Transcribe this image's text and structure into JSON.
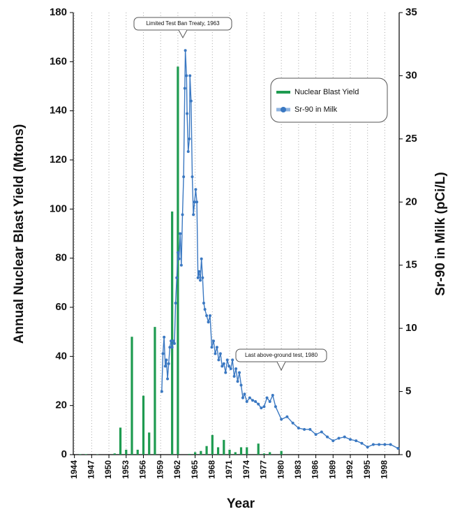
{
  "chart_data": {
    "type": "combo",
    "xlabel": "Year",
    "ylabel": "Annual Nuclear Blast Yield (Mtons)",
    "y2label": "Sr-90 in Milk (pCi/L)",
    "xlim": [
      1943.8,
      2000.5
    ],
    "xticks": [
      1944,
      1947,
      1950,
      1953,
      1956,
      1959,
      1962,
      1965,
      1968,
      1971,
      1974,
      1977,
      1980,
      1983,
      1986,
      1989,
      1992,
      1995,
      1998
    ],
    "ylim": [
      0,
      180
    ],
    "yticks": [
      0,
      20,
      40,
      60,
      80,
      100,
      120,
      140,
      160,
      180
    ],
    "y2lim": [
      0,
      35
    ],
    "y2ticks": [
      0,
      5,
      10,
      15,
      20,
      25,
      30,
      35
    ],
    "grid": true,
    "legend": "upper right",
    "annotations": [
      "Limited Test Ban Treaty, 1963",
      "Last above-ground test, 1980"
    ],
    "series": [
      {
        "name": "Nuclear Blast Yield",
        "type": "bar",
        "color": "#1e9b50",
        "x": [
          1945,
          1946,
          1948,
          1951,
          1952,
          1953,
          1954,
          1955,
          1956,
          1957,
          1958,
          1961,
          1962,
          1964,
          1965,
          1966,
          1967,
          1968,
          1969,
          1970,
          1971,
          1972,
          1973,
          1974,
          1976,
          1977,
          1978,
          1980
        ],
        "values": [
          0.2,
          0.2,
          0.1,
          0.5,
          11,
          2,
          48,
          2,
          24,
          9,
          52,
          99,
          158,
          0.3,
          1,
          1.5,
          3.5,
          8,
          3,
          6,
          2,
          1,
          3,
          3,
          4.5,
          0.5,
          1,
          1.5
        ]
      },
      {
        "name": "Sr-90 in Milk",
        "type": "line",
        "axis": "y2",
        "color": "#3a78c2",
        "x": [
          1959.2,
          1959.4,
          1959.6,
          1959.8,
          1960.0,
          1960.2,
          1960.4,
          1960.6,
          1960.8,
          1961.0,
          1961.2,
          1961.4,
          1961.6,
          1961.8,
          1962.0,
          1962.2,
          1962.4,
          1962.6,
          1962.8,
          1963.0,
          1963.2,
          1963.3,
          1963.5,
          1963.6,
          1963.8,
          1964.0,
          1964.1,
          1964.3,
          1964.5,
          1964.7,
          1964.9,
          1965.1,
          1965.3,
          1965.5,
          1965.7,
          1965.9,
          1966.1,
          1966.3,
          1966.5,
          1966.7,
          1967.0,
          1967.3,
          1967.6,
          1967.9,
          1968.2,
          1968.5,
          1968.8,
          1969.1,
          1969.4,
          1969.7,
          1970.0,
          1970.3,
          1970.6,
          1970.9,
          1971.2,
          1971.5,
          1971.8,
          1972.1,
          1972.4,
          1972.7,
          1973.0,
          1973.3,
          1973.6,
          1974.0,
          1974.5,
          1975.0,
          1975.5,
          1976.0,
          1976.5,
          1977.0,
          1977.5,
          1978.0,
          1978.5,
          1979,
          1980,
          1981,
          1982,
          1983,
          1984,
          1985,
          1986,
          1987,
          1988,
          1989,
          1990,
          1991,
          1992,
          1993,
          1994,
          1995,
          1996,
          1997,
          1998,
          1999,
          2000.3
        ],
        "values": [
          5,
          8,
          9.3,
          7,
          7.5,
          6,
          7.2,
          8.5,
          9,
          8.5,
          9,
          8.8,
          12,
          14,
          16,
          15.5,
          17.5,
          15,
          19,
          22,
          29,
          32,
          30,
          27,
          24,
          25,
          30,
          28,
          22,
          19,
          20,
          21,
          20,
          14,
          14.5,
          13.8,
          15.5,
          14,
          12,
          11.5,
          11,
          10.5,
          11,
          8.5,
          9,
          8,
          8.5,
          7.5,
          8,
          7,
          7.2,
          6.5,
          7.5,
          7,
          6.8,
          7.5,
          6.2,
          6.8,
          5.8,
          6.5,
          5.5,
          4.5,
          4.8,
          4.2,
          4.5,
          4.3,
          4.2,
          4.0,
          3.7,
          3.8,
          4.5,
          4.2,
          4.7,
          3.8,
          2.8,
          3.0,
          2.5,
          2.1,
          2.0,
          2.0,
          1.6,
          1.8,
          1.4,
          1.1,
          1.3,
          1.4,
          1.2,
          1.1,
          0.9,
          0.6,
          0.8,
          0.8,
          0.8,
          0.8,
          0.5
        ]
      }
    ]
  }
}
